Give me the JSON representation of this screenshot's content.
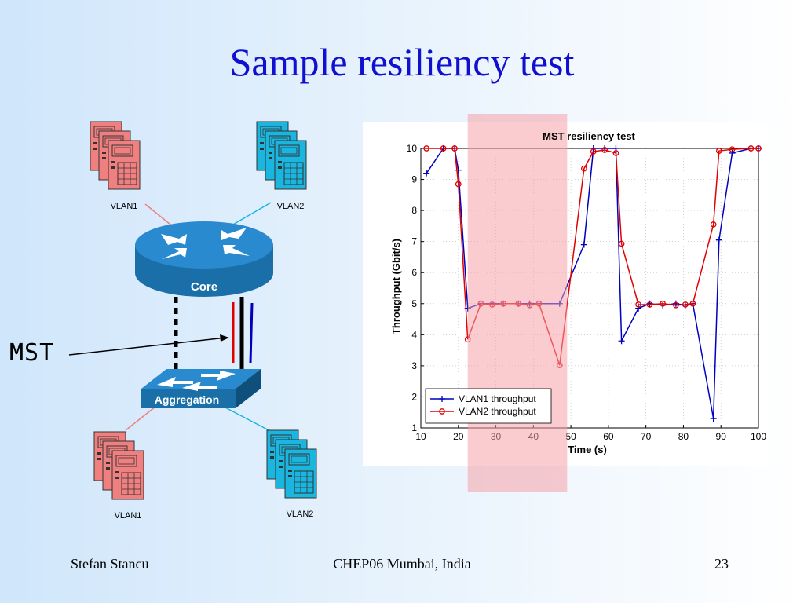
{
  "slide": {
    "title": "Sample resiliency test",
    "footer_left": "Stefan Stancu",
    "footer_center": "CHEP06 Mumbai, India",
    "footer_right": "23"
  },
  "diagram": {
    "core_label": "Core",
    "aggregation_label": "Aggregation",
    "mst_label": "MST",
    "top_left_group": "VLAN1",
    "top_right_group": "VLAN2",
    "bottom_left_group": "VLAN1",
    "bottom_right_group": "VLAN2",
    "colors": {
      "vlan1": "#f08080",
      "vlan2": "#1ab6e0",
      "device": "#1a6fa8",
      "link_red": "#e00000",
      "link_blue": "#0000c0"
    }
  },
  "chart_data": {
    "type": "line",
    "title": "MST resiliency test",
    "xlabel": "Time (s)",
    "ylabel": "Throughput (Gbit/s)",
    "xlim": [
      10,
      100
    ],
    "ylim": [
      1,
      10
    ],
    "xticks": [
      10,
      20,
      30,
      40,
      50,
      60,
      70,
      80,
      90,
      100
    ],
    "yticks": [
      1,
      2,
      3,
      4,
      5,
      6,
      7,
      8,
      9,
      10
    ],
    "grid": true,
    "legend_position": "bottom-left",
    "highlight_region": [
      22.5,
      49
    ],
    "series": [
      {
        "name": "VLAN1 throughput",
        "color": "#0000c0",
        "marker": "plus",
        "x": [
          11.5,
          16,
          19,
          20,
          22.5,
          26,
          29,
          32,
          36,
          39,
          41.5,
          47,
          53.5,
          56,
          59,
          62,
          63.5,
          68,
          71,
          74.5,
          78,
          80.5,
          82.5,
          88,
          89.5,
          93,
          98,
          100
        ],
        "y": [
          9.2,
          10,
          10,
          9.3,
          4.85,
          5,
          5,
          5,
          5,
          5,
          5,
          5,
          6.9,
          10,
          10,
          10,
          3.8,
          4.85,
          5,
          4.95,
          5,
          4.95,
          5,
          1.3,
          7.05,
          9.85,
          10,
          10
        ]
      },
      {
        "name": "VLAN2 throughput",
        "color": "#e00000",
        "marker": "circle",
        "x": [
          11.5,
          16,
          19,
          20,
          22.5,
          26,
          29,
          32,
          36,
          39,
          41.5,
          47,
          53.5,
          56,
          59,
          62,
          63.5,
          68,
          71,
          74.5,
          78,
          80.5,
          82.5,
          88,
          89.5,
          93,
          98,
          100
        ],
        "y": [
          10,
          10,
          10,
          8.85,
          3.85,
          5,
          4.97,
          5,
          5,
          4.95,
          5,
          3.02,
          9.35,
          9.9,
          9.95,
          9.85,
          6.93,
          4.97,
          4.97,
          5,
          4.95,
          4.97,
          5,
          7.55,
          9.92,
          9.97,
          10,
          10
        ]
      }
    ]
  }
}
